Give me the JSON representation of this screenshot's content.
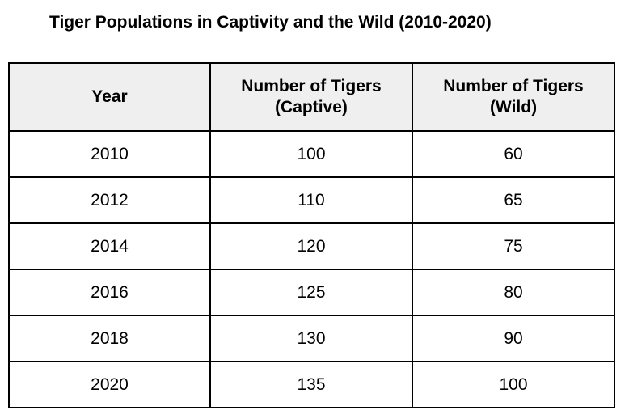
{
  "chart_data": {
    "type": "table",
    "title": "Tiger Populations in Captivity and the Wild (2010-2020)",
    "columns": [
      {
        "line1": "Year",
        "line2": ""
      },
      {
        "line1": "Number of Tigers",
        "line2": "(Captive)"
      },
      {
        "line1": "Number of Tigers",
        "line2": "(Wild)"
      }
    ],
    "rows": [
      [
        "2010",
        "100",
        "60"
      ],
      [
        "2012",
        "110",
        "65"
      ],
      [
        "2014",
        "120",
        "75"
      ],
      [
        "2016",
        "125",
        "80"
      ],
      [
        "2018",
        "130",
        "90"
      ],
      [
        "2020",
        "135",
        "100"
      ]
    ]
  }
}
